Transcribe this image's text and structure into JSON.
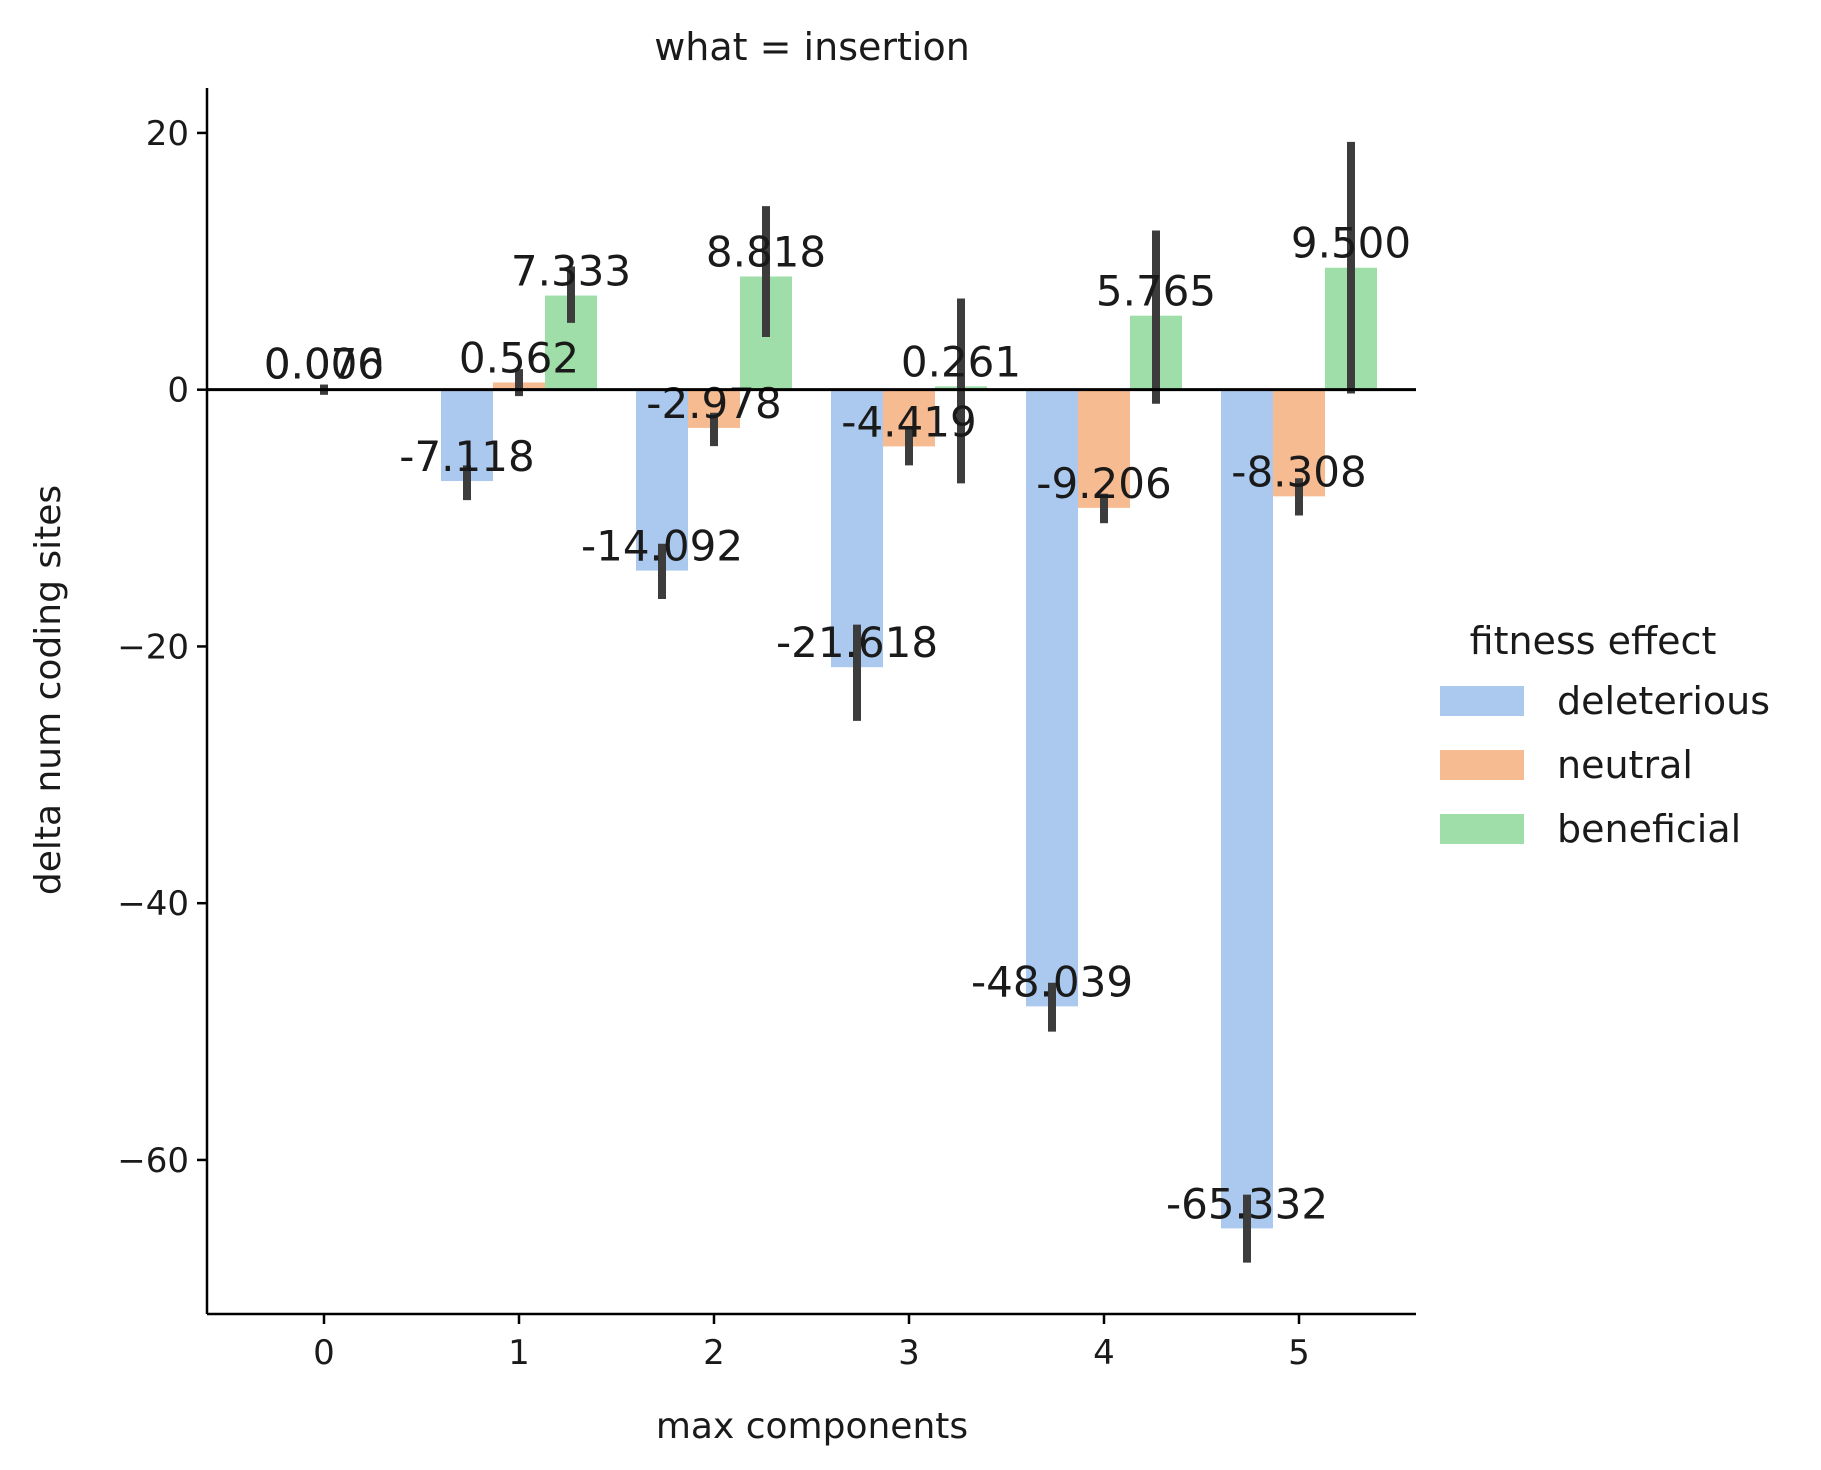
{
  "chart_data": {
    "type": "bar",
    "title": "what = insertion",
    "xlabel": "max components",
    "ylabel": "delta num coding sites",
    "categories": [
      "0",
      "1",
      "2",
      "3",
      "4",
      "5"
    ],
    "yticks": [
      20,
      0,
      -20,
      -40,
      -60
    ],
    "ylim": [
      -72,
      23.5
    ],
    "grid": false,
    "legend": {
      "title": "fitness effect",
      "placement": "right",
      "entries": [
        "deleterious",
        "neutral",
        "beneficial"
      ]
    },
    "series": [
      {
        "name": "deleterious",
        "color": "#abc9ee",
        "values": [
          null,
          -7.118,
          -14.092,
          -21.618,
          -48.039,
          -65.332
        ],
        "labels": [
          null,
          "-7.118",
          "-14.092",
          "-21.618",
          "-48.039",
          "-65.332"
        ],
        "ci": [
          null,
          [
            -8.6,
            -5.9
          ],
          [
            -16.3,
            -12.0
          ],
          [
            -25.8,
            -18.3
          ],
          [
            -50.0,
            -46.2
          ],
          [
            -68.0,
            -62.7
          ]
        ]
      },
      {
        "name": "neutral",
        "color": "#f6bb91",
        "values": [
          null,
          0.562,
          -2.978,
          -4.419,
          -9.206,
          -8.308
        ],
        "labels": [
          null,
          "0.562",
          "-2.978",
          "-4.419",
          "-9.206",
          "-8.308"
        ],
        "ci": [
          null,
          [
            -0.5,
            1.6
          ],
          [
            -4.4,
            -1.8
          ],
          [
            -5.9,
            -3.1
          ],
          [
            -10.4,
            -8.1
          ],
          [
            -9.8,
            -6.9
          ]
        ]
      },
      {
        "name": "beneficial",
        "color": "#9fdea9",
        "values": [
          null,
          7.333,
          8.818,
          0.261,
          5.765,
          9.5
        ],
        "labels": [
          null,
          "7.333",
          "8.818",
          "0.261",
          "5.765",
          "9.500"
        ],
        "ci": [
          null,
          [
            5.2,
            9.6
          ],
          [
            4.1,
            14.3
          ],
          [
            -7.3,
            7.1
          ],
          [
            -1.1,
            12.4
          ],
          [
            -0.3,
            19.3
          ]
        ]
      }
    ],
    "overall": {
      "category": "0",
      "value": 0.076,
      "ci": [
        -0.4,
        0.4
      ],
      "labels": [
        "0.076",
        "0.000"
      ]
    }
  }
}
